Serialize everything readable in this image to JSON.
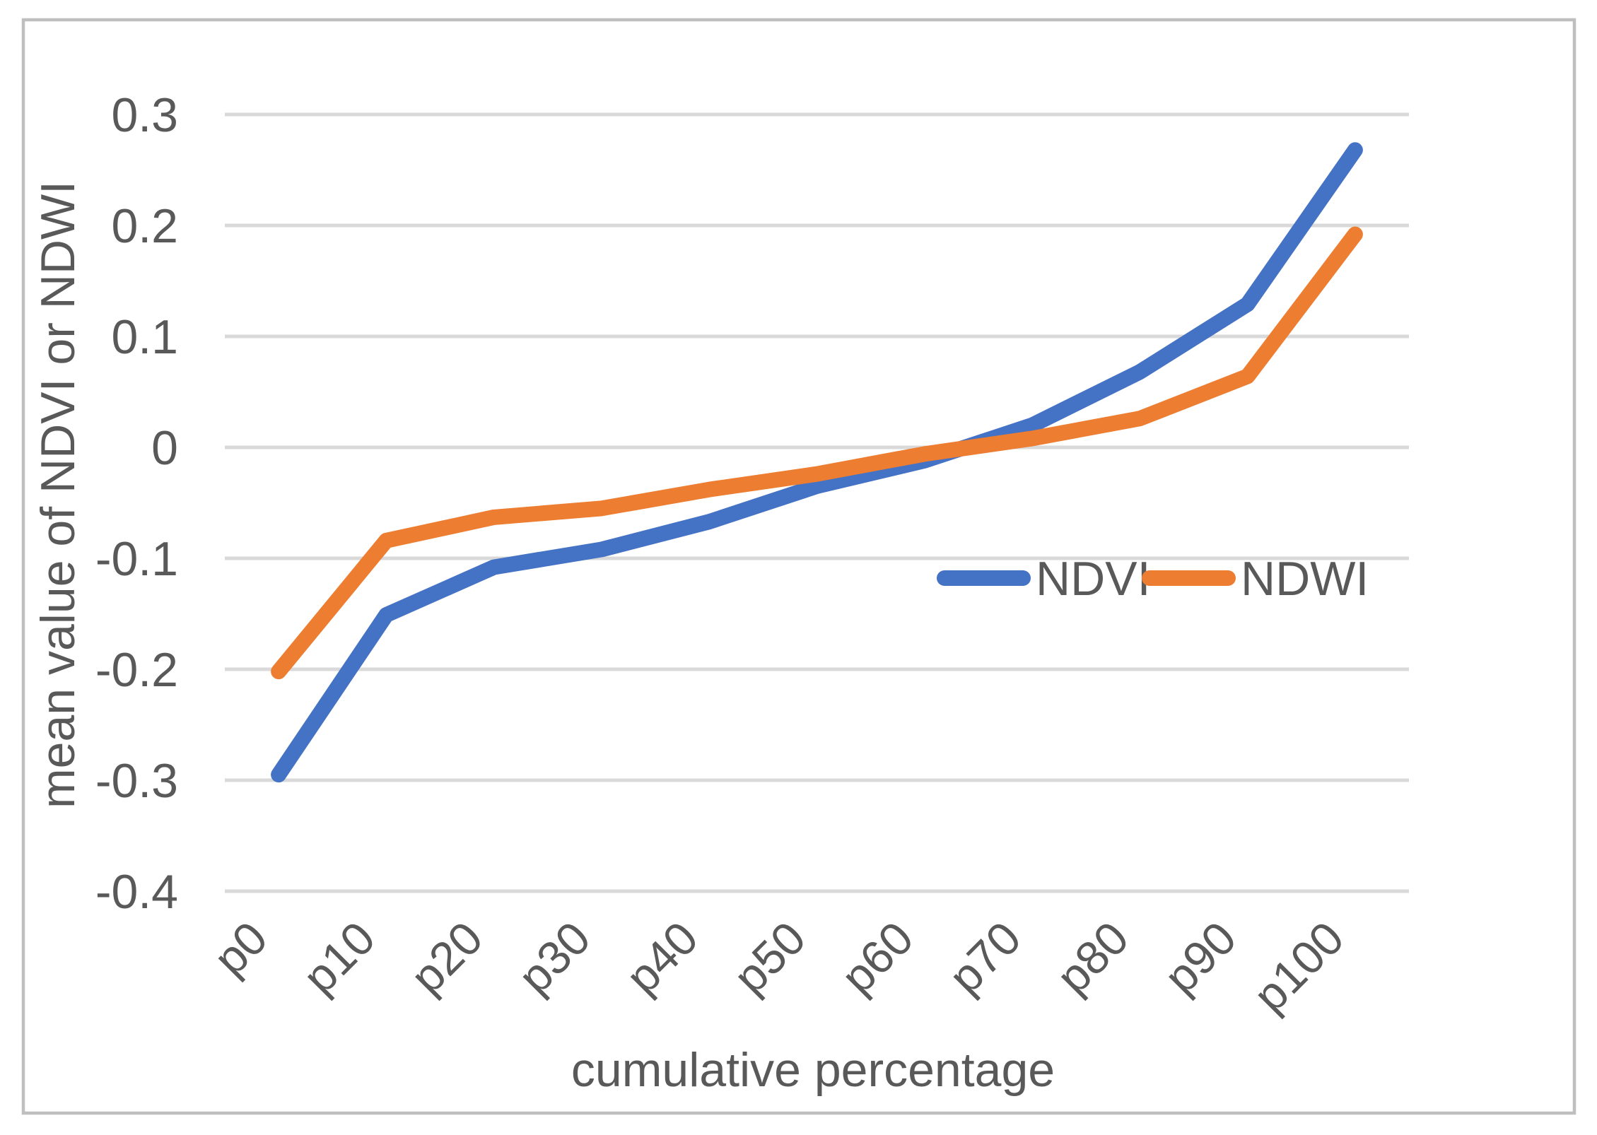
{
  "figure": {
    "background_color": "#FFFFFF",
    "border_color": "#BFBFBF",
    "text_color": "#595959",
    "gridline_color": "#D9D9D9"
  },
  "chart_data": {
    "type": "line",
    "title": "",
    "xlabel": "cumulative percentage",
    "ylabel": "mean value of NDVI or NDWI",
    "categories": [
      "p0",
      "p10",
      "p20",
      "p30",
      "p40",
      "p50",
      "p60",
      "p70",
      "p80",
      "p90",
      "p100"
    ],
    "series": [
      {
        "name": "NDVI",
        "color": "#4472C4",
        "values": [
          -0.295,
          -0.151,
          -0.108,
          -0.092,
          -0.067,
          -0.035,
          -0.012,
          0.02,
          0.068,
          0.129,
          0.268
        ]
      },
      {
        "name": "NDWI",
        "color": "#ED7D31",
        "values": [
          -0.202,
          -0.084,
          -0.063,
          -0.055,
          -0.038,
          -0.024,
          -0.006,
          0.008,
          0.026,
          0.064,
          0.192
        ]
      }
    ],
    "ylim": [
      -0.4,
      0.3
    ],
    "ytick_step": 0.1,
    "ytick_labels": [
      "0.3",
      "0.2",
      "0.1",
      "0",
      "-0.1",
      "-0.2",
      "-0.3",
      "-0.4"
    ],
    "grid": true,
    "legend_position": "inside-right-middle",
    "legend_entries": [
      "NDVI",
      "NDWI"
    ]
  }
}
